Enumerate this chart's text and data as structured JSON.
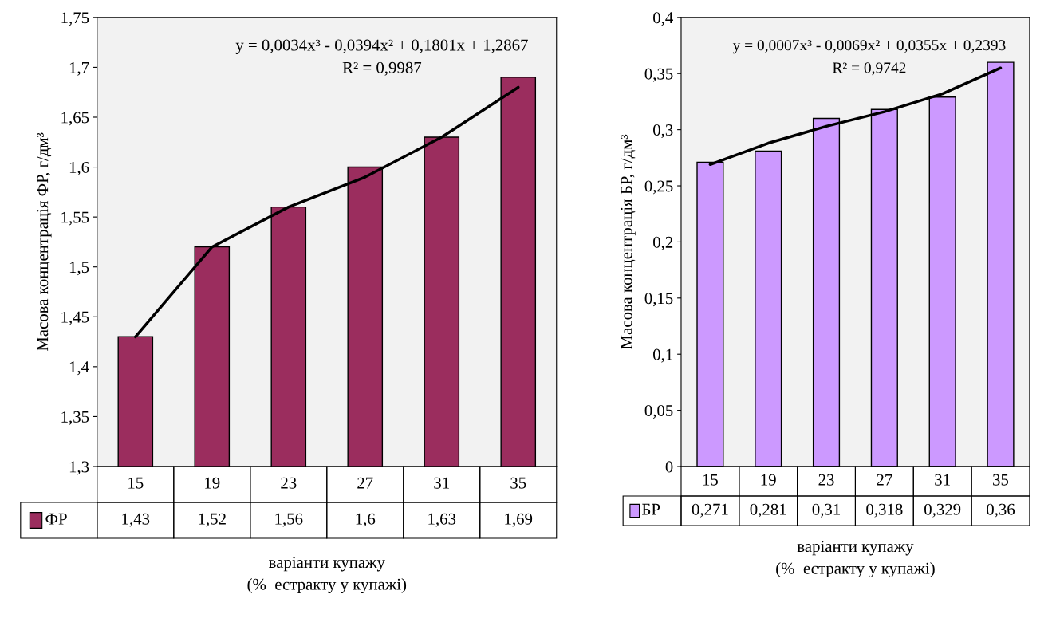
{
  "chart_data": [
    {
      "type": "bar",
      "categories": [
        "15",
        "19",
        "23",
        "27",
        "31",
        "35"
      ],
      "series": [
        {
          "name": "ФР",
          "color": "#9b2d5e",
          "values": [
            1.43,
            1.52,
            1.56,
            1.6,
            1.63,
            1.69
          ],
          "value_labels": [
            "1,43",
            "1,52",
            "1,56",
            "1,6",
            "1,63",
            "1,69"
          ]
        },
        {
          "type": "line",
          "color": "#000000",
          "values": [
            1.43,
            1.52,
            1.56,
            1.59,
            1.63,
            1.68
          ]
        }
      ],
      "ylim": [
        1.3,
        1.75
      ],
      "yticks": [
        {
          "value": 1.3,
          "label": "1,3"
        },
        {
          "value": 1.35,
          "label": "1,35"
        },
        {
          "value": 1.4,
          "label": "1,4"
        },
        {
          "value": 1.45,
          "label": "1,45"
        },
        {
          "value": 1.5,
          "label": "1,5"
        },
        {
          "value": 1.55,
          "label": "1,55"
        },
        {
          "value": 1.6,
          "label": "1,6"
        },
        {
          "value": 1.65,
          "label": "1,65"
        },
        {
          "value": 1.7,
          "label": "1,7"
        },
        {
          "value": 1.75,
          "label": "1,75"
        }
      ],
      "ylabel": "Масова концентрація ФР, г/дм³",
      "xlabel": "варіанти купажу\n(%  естракту у купажі)",
      "annotations": [
        "y = 0,0034x³ - 0,0394x² + 0,1801x + 1,2867",
        "R² = 0,9987"
      ]
    },
    {
      "type": "bar",
      "categories": [
        "15",
        "19",
        "23",
        "27",
        "31",
        "35"
      ],
      "series": [
        {
          "name": "БР",
          "color": "#cc99ff",
          "values": [
            0.271,
            0.281,
            0.31,
            0.318,
            0.329,
            0.36
          ],
          "value_labels": [
            "0,271",
            "0,281",
            "0,31",
            "0,318",
            "0,329",
            "0,36"
          ]
        },
        {
          "type": "line",
          "color": "#000000",
          "values": [
            0.269,
            0.288,
            0.303,
            0.316,
            0.332,
            0.355
          ]
        }
      ],
      "ylim": [
        0,
        0.4
      ],
      "yticks": [
        0,
        {
          "value": 0.05,
          "label": "0,05"
        },
        {
          "value": 0.1,
          "label": "0,1"
        },
        {
          "value": 0.15,
          "label": "0,15"
        },
        {
          "value": 0.2,
          "label": "0,2"
        },
        {
          "value": 0.25,
          "label": "0,25"
        },
        {
          "value": 0.3,
          "label": "0,3"
        },
        {
          "value": 0.35,
          "label": "0,35"
        },
        {
          "value": 0.4,
          "label": "0,4"
        }
      ],
      "ylabel": "Масова концентрація БР, г/дм³",
      "xlabel": "варіанти купажу\n(%  естракту у купажі)",
      "annotations": [
        "y = 0,0007x³ - 0,0069x² + 0,0355x + 0,2393",
        "R² = 0,9742"
      ]
    }
  ]
}
